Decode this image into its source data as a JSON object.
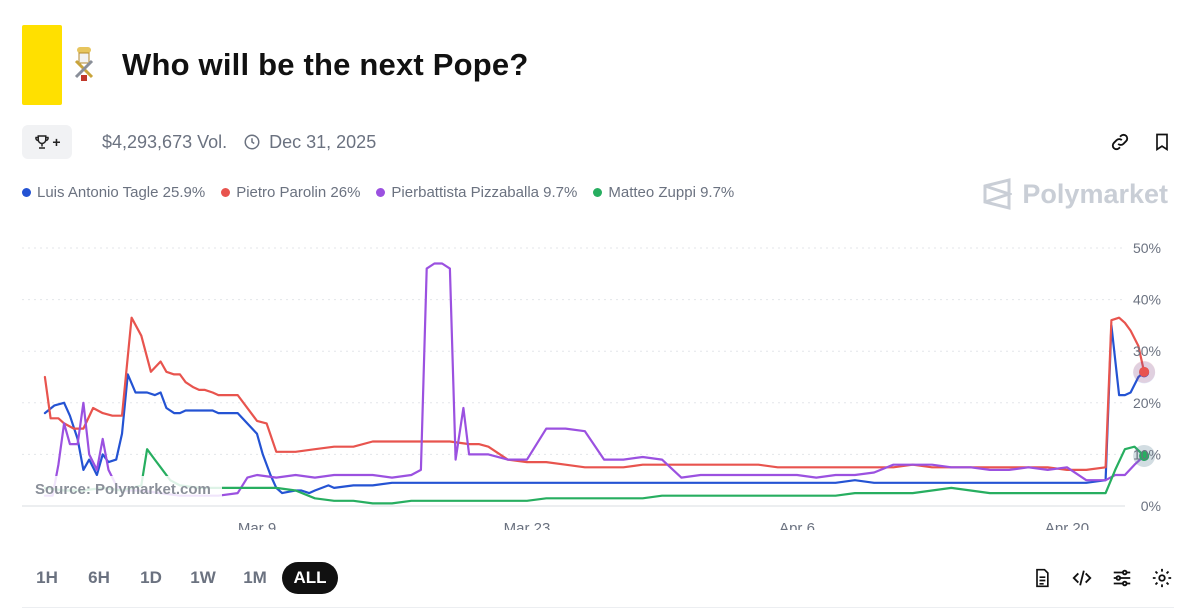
{
  "header": {
    "title": "Who will be the next Pope?",
    "logo_color": "#FFE000"
  },
  "meta": {
    "trophy_label": "+",
    "volume": "$4,293,673 Vol.",
    "end_date": "Dec 31, 2025",
    "icons": [
      "trophy-icon",
      "clock-icon",
      "link-icon",
      "bookmark-icon"
    ]
  },
  "legend": [
    {
      "name": "Luis Antonio Tagle 25.9%",
      "color": "#2453d3"
    },
    {
      "name": "Pietro Parolin 26%",
      "color": "#e8544e"
    },
    {
      "name": "Pierbattista Pizzaballa 9.7%",
      "color": "#9b51e0"
    },
    {
      "name": "Matteo Zuppi 9.7%",
      "color": "#27ae60"
    }
  ],
  "watermark": "Polymarket",
  "source": "Source: Polymarket.com",
  "chart_data": {
    "type": "line",
    "x_ticks": [
      "Mar 9",
      "Mar 23",
      "Apr 6",
      "Apr 20"
    ],
    "x_unit": "days from Feb 26",
    "y_ticks": [
      "0%",
      "10%",
      "20%",
      "30%",
      "40%",
      "50%"
    ],
    "ylim": [
      0,
      50
    ],
    "xlim": [
      0,
      57
    ],
    "grid": true,
    "series": [
      {
        "name": "Luis Antonio Tagle",
        "color": "#2453d3",
        "x": [
          0,
          0.5,
          1,
          1.3,
          1.7,
          2,
          2.3,
          2.7,
          3,
          3.3,
          3.7,
          4,
          4.3,
          4.7,
          5,
          5.3,
          5.7,
          6,
          6.3,
          6.7,
          7,
          7.3,
          7.7,
          8,
          8.3,
          8.7,
          9,
          10,
          11,
          11.3,
          11.7,
          12,
          12.3,
          12.7,
          13,
          13.3,
          13.7,
          14,
          14.7,
          15,
          16,
          17,
          18,
          19,
          20,
          21,
          22,
          23,
          24,
          25,
          26,
          27,
          28,
          29,
          30,
          31,
          32,
          33,
          34,
          35,
          36,
          37,
          38,
          39,
          40,
          41,
          42,
          43,
          44,
          45,
          46,
          47,
          48,
          49,
          50,
          51,
          52,
          53,
          54,
          55,
          55.3,
          55.7,
          56,
          56.3,
          56.7,
          57
        ],
        "values": [
          18,
          19.5,
          20,
          17.5,
          13,
          7,
          9,
          6,
          10,
          8.5,
          9,
          14,
          25.5,
          22,
          22,
          22,
          21.5,
          22,
          19,
          18,
          18,
          18.5,
          18.5,
          18.5,
          18.5,
          18.5,
          18,
          18,
          14,
          10,
          6,
          3.5,
          2.5,
          2.8,
          3,
          3,
          2.5,
          3,
          4,
          3.5,
          4,
          4,
          4.5,
          4.5,
          4.5,
          4.5,
          4.5,
          4.5,
          4.5,
          4.5,
          4.5,
          4.5,
          4.5,
          4.5,
          4.5,
          4.5,
          4.5,
          4.5,
          4.5,
          4.5,
          4.5,
          4.5,
          4.5,
          4.5,
          4.5,
          4.5,
          5,
          4.5,
          4.5,
          4.5,
          4.5,
          4.5,
          4.5,
          4.5,
          4.5,
          4.5,
          4.5,
          4.5,
          4.5,
          5,
          35,
          21.5,
          21.5,
          22,
          25,
          25.9
        ]
      },
      {
        "name": "Pietro Parolin",
        "color": "#e8544e",
        "x": [
          0,
          0.3,
          0.7,
          1,
          1.5,
          2,
          2.5,
          3,
          3.5,
          4,
          4.5,
          5,
          5.5,
          6,
          6.3,
          6.7,
          7,
          7.3,
          7.7,
          8,
          8.3,
          8.7,
          9,
          10,
          11,
          11.5,
          12,
          12.3,
          12.7,
          13,
          14,
          15,
          16,
          17,
          18,
          19,
          20,
          21,
          22,
          22.5,
          23,
          24,
          25,
          26,
          27,
          28,
          29,
          30,
          31,
          32,
          33,
          34,
          35,
          36,
          37,
          38,
          39,
          40,
          41,
          42,
          43,
          44,
          45,
          46,
          47,
          48,
          49,
          50,
          51,
          52,
          53,
          54,
          55,
          55.3,
          55.7,
          56,
          56.3,
          56.7,
          57
        ],
        "values": [
          25,
          17,
          17,
          16,
          15,
          15,
          19,
          18,
          17.5,
          17.5,
          36.5,
          33,
          26,
          28,
          26,
          25.5,
          25.5,
          24,
          23,
          22.5,
          22.5,
          22,
          21.5,
          21.5,
          16.5,
          16,
          10.5,
          10.5,
          10.5,
          10.5,
          11,
          11.5,
          11.5,
          12.5,
          12.5,
          12.5,
          12.5,
          12.5,
          12,
          12,
          11.5,
          9,
          8.5,
          8.5,
          8,
          7.5,
          7.5,
          7.5,
          8,
          8,
          8,
          8,
          8,
          8,
          8,
          7.5,
          7.5,
          7.5,
          7.5,
          7.5,
          7.5,
          7.5,
          8,
          7.5,
          7.5,
          7.5,
          7.5,
          7.5,
          7.5,
          7.5,
          7,
          7,
          7.5,
          36,
          36.5,
          35.5,
          34,
          31,
          26
        ]
      },
      {
        "name": "Pierbattista Pizzaballa",
        "color": "#9b51e0",
        "x": [
          0,
          0.4,
          0.7,
          1,
          1.3,
          1.7,
          2,
          2.3,
          2.7,
          3,
          3.3,
          3.7,
          4,
          5,
          6,
          7,
          8,
          9,
          10,
          10.5,
          11,
          12,
          13,
          14,
          15,
          16,
          17,
          18,
          19,
          19.5,
          19.8,
          20.2,
          20.6,
          21,
          21.3,
          21.7,
          22,
          23,
          24,
          25,
          26,
          27,
          28,
          29,
          29.5,
          30,
          31,
          32,
          33,
          34,
          35,
          36,
          37,
          38,
          39,
          40,
          41,
          42,
          43,
          44,
          45,
          46,
          47,
          48,
          49,
          50,
          51,
          52,
          53,
          54,
          55,
          55.5,
          56,
          56.5,
          57
        ],
        "values": [
          2,
          2,
          8,
          16,
          12,
          12,
          20,
          10,
          7,
          13,
          7,
          4,
          3,
          3,
          2.5,
          2,
          2,
          2,
          2.5,
          5.5,
          6,
          5.5,
          6,
          5.5,
          6,
          6,
          6,
          5.5,
          6,
          7,
          46,
          47,
          47,
          46,
          9,
          19,
          10,
          10,
          9,
          9,
          15,
          15,
          14.5,
          9,
          9,
          9,
          9.5,
          9,
          5.5,
          6,
          6,
          6,
          6,
          6,
          6,
          5.5,
          6,
          6,
          6.5,
          8,
          8,
          8,
          7.5,
          7.5,
          7,
          7,
          7.5,
          7,
          7.5,
          5,
          5,
          6,
          6,
          8,
          9.7
        ]
      },
      {
        "name": "Matteo Zuppi",
        "color": "#27ae60",
        "x": [
          0,
          1,
          2,
          3,
          4,
          5,
          5.3,
          5.7,
          6,
          6.5,
          7,
          8,
          9,
          10,
          11,
          12,
          13,
          14,
          15,
          16,
          17,
          18,
          19,
          20,
          21,
          22,
          23,
          24,
          25,
          26,
          27,
          28,
          29,
          30,
          31,
          32,
          33,
          34,
          35,
          36,
          37,
          38,
          39,
          40,
          41,
          42,
          43,
          44,
          45,
          46,
          47,
          48,
          49,
          50,
          51,
          52,
          53,
          54,
          55,
          55.5,
          56,
          56.5,
          57
        ],
        "values": [
          3.5,
          3,
          3,
          3.5,
          3,
          4,
          11,
          9,
          7.5,
          5,
          4,
          3.5,
          3.5,
          3.5,
          3.5,
          3.5,
          3,
          1.5,
          1,
          1,
          0.5,
          0.5,
          1,
          1,
          1,
          1,
          1,
          1,
          1,
          1.5,
          1.5,
          1.5,
          1.5,
          1.5,
          1.5,
          2,
          2,
          2,
          2,
          2,
          2,
          2,
          2,
          2,
          2,
          2.5,
          2.5,
          2.5,
          2.5,
          3,
          3.5,
          3,
          2.5,
          2.5,
          2.5,
          2.5,
          2.5,
          2.5,
          2.5,
          7,
          11,
          11.5,
          9.7
        ]
      }
    ]
  },
  "ranges": [
    "1H",
    "6H",
    "1D",
    "1W",
    "1M",
    "ALL"
  ],
  "active_range": "ALL",
  "bottom_icons": [
    "document-icon",
    "code-icon",
    "sliders-icon",
    "gear-icon"
  ]
}
